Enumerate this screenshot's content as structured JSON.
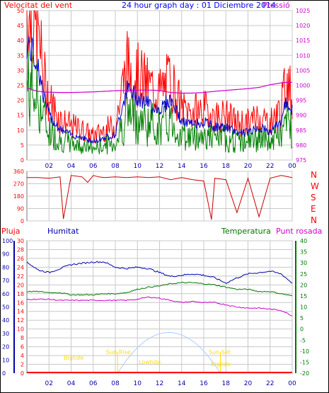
{
  "title": "24 hour graph day : 01 Diciembre 2014",
  "colors": {
    "wind": "#ff0000",
    "wind_avg": "#0000cc",
    "gust_low": "#008000",
    "pressure": "#cc00cc",
    "rain": "#ff0000",
    "humidity": "#0000aa",
    "temperature": "#007700",
    "dewpoint": "#cc00cc",
    "sun": "#aaccff",
    "label_yellow": "#ffdd00"
  },
  "wind_panel": {
    "left_label": "Velocitat del vent",
    "right_label": "Pressió",
    "ylim": [
      0,
      50
    ],
    "left_ticks": [
      "50",
      "45",
      "40",
      "35",
      "30",
      "25",
      "20",
      "15",
      "10",
      "5",
      "0"
    ],
    "right_ticks": [
      "1025",
      "1020",
      "1015",
      "1010",
      "1005",
      "1000",
      "995",
      "990",
      "985",
      "980",
      "975"
    ],
    "pressure_range": [
      975,
      1025
    ],
    "x_ticks": [
      "02",
      "04",
      "06",
      "08",
      "10",
      "12",
      "14",
      "16",
      "18",
      "20",
      "22",
      "00"
    ]
  },
  "dir_panel": {
    "left_ticks": [
      "360",
      "270",
      "180",
      "90",
      "0"
    ],
    "compass": [
      "N",
      "W",
      "S",
      "E",
      "N"
    ],
    "ylim": [
      0,
      360
    ]
  },
  "lower_panel": {
    "labels": {
      "rain": "Pluja",
      "humidity": "Humitat",
      "temperature": "Temperatura",
      "dewpoint": "Punt rosada"
    },
    "humidity_ticks": [
      "100",
      "90",
      "80",
      "70",
      "60",
      "50",
      "40",
      "30",
      "20",
      "10",
      "0"
    ],
    "rain_ticks": [
      "30",
      "28",
      "26",
      "24",
      "22",
      "20",
      "18",
      "16",
      "14",
      "12",
      "10",
      "8",
      "6",
      "4",
      "2",
      "0"
    ],
    "temp_ticks": [
      "40",
      "35",
      "30",
      "25",
      "20",
      "15",
      "10",
      "5",
      "0",
      "-5",
      "-10",
      "-15",
      "-20"
    ],
    "temp_range": [
      -20,
      40
    ],
    "x_ticks": [
      "02",
      "04",
      "06",
      "08",
      "10",
      "12",
      "14",
      "16",
      "18",
      "20",
      "22",
      "00"
    ],
    "sun_labels": {
      "bigtide1": "Bigtide",
      "sunrise": "Sun Rise",
      "lowtide": "Lowtide",
      "sunset": "Sun Set",
      "bigtide2": "Bigtide"
    }
  },
  "chart_data": [
    {
      "type": "line",
      "title": "24 hour graph day : 01 Diciembre 2014",
      "ylabel": "Velocitat del vent",
      "y2label": "Pressió",
      "x_hours": [
        0.2,
        0.5,
        1,
        1.5,
        2,
        3,
        4,
        5,
        6,
        7,
        8,
        9,
        10,
        11,
        12,
        13,
        14,
        15,
        16,
        17,
        18,
        19,
        20,
        21,
        22,
        23,
        23.5,
        24
      ],
      "series": [
        {
          "name": "Velocitat del vent",
          "values": [
            45,
            42,
            38,
            25,
            18,
            12,
            10,
            9,
            7,
            9,
            10,
            28,
            25,
            22,
            20,
            24,
            15,
            14,
            15,
            13,
            13,
            11,
            11,
            13,
            11,
            15,
            24,
            19
          ]
        },
        {
          "name": "Pressió",
          "values": [
            999,
            998.5,
            998,
            997.8,
            997.7,
            997.6,
            997.6,
            997.7,
            997.8,
            998,
            998.2,
            998.3,
            998.4,
            998.4,
            998.3,
            997.6,
            997.4,
            997.4,
            997.6,
            998,
            998.3,
            998.6,
            998.9,
            999.3,
            1000.2,
            1000.8,
            1001,
            1001
          ]
        }
      ],
      "ylim": [
        0,
        50
      ],
      "y2lim": [
        975,
        1025
      ]
    },
    {
      "type": "line",
      "ylabel": "Direction",
      "x_hours": [
        0,
        1,
        2,
        3,
        3.3,
        4,
        5,
        5.5,
        6,
        6.5,
        7,
        8,
        9,
        10,
        11,
        12,
        13,
        14,
        15,
        16,
        16.7,
        17,
        18,
        19,
        20,
        21,
        22,
        23,
        24
      ],
      "series": [
        {
          "name": "Direction",
          "values": [
            315,
            315,
            310,
            320,
            15,
            330,
            320,
            280,
            330,
            320,
            315,
            320,
            315,
            320,
            315,
            320,
            300,
            315,
            300,
            290,
            10,
            310,
            300,
            60,
            310,
            30,
            310,
            330,
            315
          ]
        }
      ],
      "ylim": [
        0,
        360
      ]
    },
    {
      "type": "line",
      "x_hours": [
        0,
        1,
        2,
        3,
        4,
        5,
        6,
        7,
        8,
        9,
        10,
        11,
        12,
        13,
        14,
        15,
        16,
        17,
        18,
        19,
        20,
        21,
        22,
        23,
        24
      ],
      "series": [
        {
          "name": "Humitat",
          "values": [
            84,
            78,
            76,
            79,
            82,
            83,
            84,
            84,
            80,
            79,
            80,
            79,
            76,
            73,
            74,
            75,
            74,
            72,
            68,
            72,
            75,
            76,
            77,
            75,
            68
          ]
        },
        {
          "name": "Temperatura",
          "values": [
            17,
            17,
            16.5,
            16.5,
            15.5,
            15.5,
            15.5,
            16,
            16,
            16.5,
            18,
            19,
            19.5,
            20.5,
            21,
            21,
            20.5,
            20,
            19,
            18,
            18,
            17,
            17,
            16,
            15
          ]
        },
        {
          "name": "Punt rosada",
          "values": [
            13.5,
            13.5,
            13.5,
            13,
            13,
            13,
            13,
            13,
            13,
            13,
            13.5,
            14.5,
            14,
            13,
            12,
            12.5,
            12,
            12,
            11,
            10,
            9.5,
            9.5,
            9,
            8.5,
            6
          ]
        },
        {
          "name": "Pluja",
          "values": [
            0,
            0,
            0,
            0,
            0,
            0,
            0,
            0,
            0,
            0,
            0,
            0,
            0,
            0,
            0,
            0,
            0,
            0,
            0,
            0,
            0,
            0,
            0,
            0,
            0
          ]
        }
      ],
      "ylim": [
        0,
        100
      ]
    }
  ]
}
